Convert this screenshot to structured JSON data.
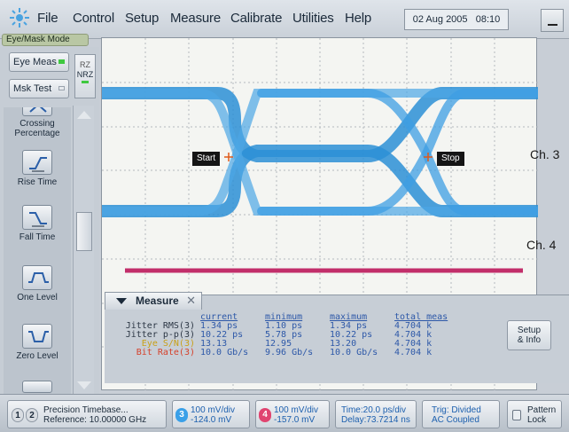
{
  "menu": {
    "items": [
      "File",
      "Control",
      "Setup",
      "Measure",
      "Calibrate",
      "Utilities",
      "Help"
    ],
    "date": "02 Aug 2005",
    "time": "08:10"
  },
  "mode": "Eye/Mask Mode",
  "left_panel": {
    "eye_meas": "Eye Meas",
    "msk_test": "Msk Test",
    "rz": "RZ",
    "nrz": "NRZ",
    "measurements": [
      "Crossing Percentage",
      "Rise Time",
      "Fall Time",
      "One Level",
      "Zero Level"
    ]
  },
  "display": {
    "start_label": "Start",
    "stop_label": "Stop",
    "ch3_label": "Ch. 3",
    "ch4_label": "Ch. 4",
    "colors": {
      "eye": "#2b8fd6",
      "ch4_trace": "#c22e6a",
      "marker_cross": "#e05a1a",
      "grid": "#b4b9bf"
    }
  },
  "measure_panel": {
    "tab": "Measure",
    "headers": [
      "current",
      "minimum",
      "maximum",
      "total meas"
    ],
    "rows": [
      {
        "label": "Jitter RMS(3)",
        "values": [
          "1.34 ps",
          "1.10 ps",
          "1.34 ps",
          "4.704 k"
        ]
      },
      {
        "label": "Jitter p-p(3)",
        "values": [
          "10.22 ps",
          "5.78 ps",
          "10.22 ps",
          "4.704 k"
        ]
      },
      {
        "label": "Eye S/N(3)",
        "values": [
          "13.13",
          "12.95",
          "13.20",
          "4.704 k"
        ]
      },
      {
        "label": "Bit Rate(3)",
        "values": [
          "10.0 Gb/s",
          "9.96 Gb/s",
          "10.0 Gb/s",
          "4.704 k"
        ]
      }
    ],
    "setup_btn": [
      "Setup",
      "& Info"
    ]
  },
  "status": {
    "timebase_line1": "Precision Timebase...",
    "timebase_line2": "Reference: 10.00000 GHz",
    "ch1": "1",
    "ch2": "2",
    "ch3_num": "3",
    "ch3_line1": "100 mV/div",
    "ch3_line2": "-124.0 mV",
    "ch4_num": "4",
    "ch4_line1": "100 mV/div",
    "ch4_line2": "-157.0 mV",
    "time_line1": "Time:20.0 ps/div",
    "time_line2": "Delay:73.7214 ns",
    "trig_line1": "Trig: Divided",
    "trig_line2": "AC Coupled",
    "pattern_line1": "Pattern",
    "pattern_line2": "Lock",
    "ch3_color": "#3aa0e8",
    "ch4_color": "#e04470"
  }
}
